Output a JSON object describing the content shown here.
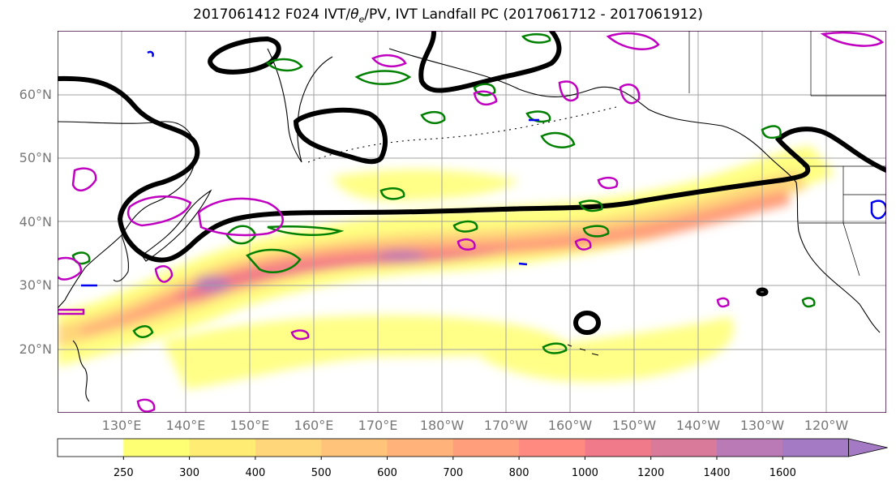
{
  "title_parts": {
    "prefix": "2017061412 F024 IVT/",
    "theta": "θ",
    "sub": "e",
    "suffix": "/PV, IVT Landfall PC (2017061712 - 2017061912)"
  },
  "map": {
    "lat_labels": [
      "60°N",
      "50°N",
      "40°N",
      "30°N",
      "20°N"
    ],
    "lon_labels": [
      "130°E",
      "140°E",
      "150°E",
      "160°E",
      "170°E",
      "180°W",
      "170°W",
      "160°W",
      "150°W",
      "140°W",
      "130°W",
      "120°W"
    ],
    "lat_values": [
      60,
      50,
      40,
      30,
      20
    ],
    "lon_values": [
      130,
      140,
      150,
      160,
      170,
      180,
      -170,
      -160,
      -150,
      -140,
      -130,
      -120
    ],
    "colors": {
      "theta_e_contour": "#008000",
      "pv_contour": "#c000c0",
      "blue_contour": "#0000ee",
      "pc_contour": "#000000",
      "grid": "#a0a0a0"
    }
  },
  "colorbar": {
    "labels": [
      "250",
      "300",
      "400",
      "500",
      "600",
      "700",
      "800",
      "1000",
      "1200",
      "1400",
      "1600"
    ],
    "colors": [
      "#ffffff",
      "#ffff73",
      "#ffed73",
      "#ffd67a",
      "#ffc47a",
      "#ffb27a",
      "#ff9e7a",
      "#ff8a80",
      "#f07a8a",
      "#d97a9a",
      "#b97ab5",
      "#a47ac4"
    ]
  }
}
